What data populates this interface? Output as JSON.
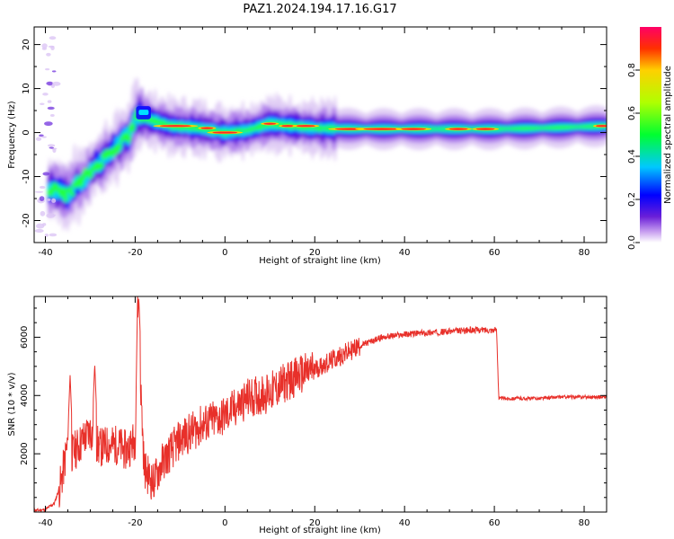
{
  "title": "PAZ1.2024.194.17.16.G17",
  "chart_data": [
    {
      "type": "heatmap",
      "xlabel": "Height of straight line (km)",
      "ylabel": "Frequency (Hz)",
      "xlim": [
        -42.5,
        85
      ],
      "ylim": [
        -25,
        24
      ],
      "xticks": [
        -40,
        -20,
        0,
        20,
        40,
        60,
        80
      ],
      "yticks": [
        -20,
        -10,
        0,
        10,
        20
      ],
      "colorbar": {
        "label": "Normalized spectral amplitude",
        "range": [
          0,
          1
        ],
        "ticks": [
          0.0,
          0.2,
          0.4,
          0.6,
          0.8
        ],
        "colormap": [
          "#ffffff",
          "#c8a0f0",
          "#6a1fd8",
          "#0000ff",
          "#00c8ff",
          "#00ff30",
          "#b0ff00",
          "#ffd000",
          "#ff3000",
          "#ff0066"
        ]
      },
      "ridge": [
        {
          "x": -38,
          "y": -13
        },
        {
          "x": -35,
          "y": -14
        },
        {
          "x": -32,
          "y": -11
        },
        {
          "x": -28,
          "y": -7
        },
        {
          "x": -24,
          "y": -3
        },
        {
          "x": -21,
          "y": 0
        },
        {
          "x": -19.5,
          "y": 4
        },
        {
          "x": -17,
          "y": 3
        },
        {
          "x": -12,
          "y": 1.5
        },
        {
          "x": -6,
          "y": 1
        },
        {
          "x": 0,
          "y": 0
        },
        {
          "x": 5,
          "y": 0.5
        },
        {
          "x": 10,
          "y": 2
        },
        {
          "x": 15,
          "y": 1.5
        },
        {
          "x": 20,
          "y": 1
        },
        {
          "x": 30,
          "y": 0.8
        },
        {
          "x": 40,
          "y": 0.8
        },
        {
          "x": 50,
          "y": 0.8
        },
        {
          "x": 60,
          "y": 0.8
        },
        {
          "x": 70,
          "y": 1
        },
        {
          "x": 85,
          "y": 1.5
        }
      ]
    },
    {
      "type": "line",
      "xlabel": "Height of straight line (km)",
      "ylabel": "SNR (10 * v/v)",
      "xlim": [
        -42.5,
        85
      ],
      "ylim": [
        0,
        7400
      ],
      "xticks": [
        -40,
        -20,
        0,
        20,
        40,
        60,
        80
      ],
      "yticks": [
        2000,
        4000,
        6000
      ],
      "line_color": "#e8302a",
      "trend": {
        "x": [
          -42.5,
          -40,
          -38,
          -36.5,
          -35,
          -34,
          -32,
          -30,
          -28,
          -26,
          -24,
          -22,
          -20,
          -19.5,
          -18,
          -16,
          -14,
          -10,
          -5,
          0,
          5,
          10,
          15,
          20,
          25,
          30,
          35,
          40,
          45,
          50,
          55,
          60.5,
          61,
          65,
          70,
          75,
          80,
          85
        ],
        "y": [
          50,
          80,
          300,
          1000,
          2400,
          2000,
          2400,
          2800,
          2200,
          2300,
          2300,
          2100,
          2500,
          7000,
          1500,
          1000,
          1700,
          2500,
          3000,
          3300,
          3900,
          4100,
          4600,
          4900,
          5300,
          5700,
          6000,
          6100,
          6150,
          6200,
          6250,
          6250,
          3900,
          3900,
          3900,
          3950,
          3950,
          3950
        ]
      },
      "peaks": [
        {
          "x": -34.5,
          "y": 4700
        },
        {
          "x": -29,
          "y": 5100
        },
        {
          "x": -19.2,
          "y": 7400
        }
      ]
    }
  ]
}
